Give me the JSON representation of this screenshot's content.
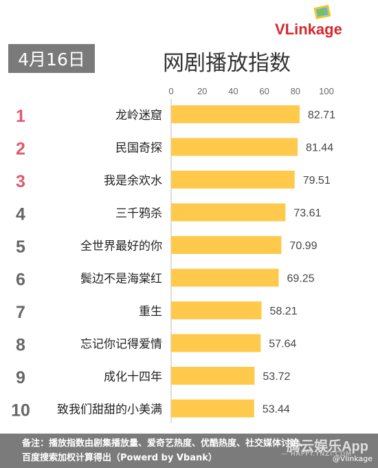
{
  "logo": {
    "text": "VLinkage"
  },
  "header": {
    "date": "4月16日",
    "title": "网剧播放指数"
  },
  "chart_data": {
    "type": "bar",
    "orientation": "horizontal",
    "title": "网剧播放指数",
    "xlim": [
      0,
      100
    ],
    "ticks": [
      0,
      20,
      40,
      60,
      80,
      100
    ],
    "ranks": [
      "1",
      "2",
      "3",
      "4",
      "5",
      "6",
      "7",
      "8",
      "9",
      "10"
    ],
    "categories": [
      "龙岭迷窟",
      "民国奇探",
      "我是余欢水",
      "三千鸦杀",
      "全世界最好的你",
      "鬓边不是海棠红",
      "重生",
      "忘记你记得爱情",
      "成化十四年",
      "致我们甜甜的小美满"
    ],
    "values": [
      82.71,
      81.44,
      79.51,
      73.61,
      70.99,
      69.25,
      58.21,
      57.64,
      53.72,
      53.44
    ],
    "value_labels": [
      "82.71",
      "81.44",
      "79.51",
      "73.61",
      "70.99",
      "69.25",
      "58.21",
      "57.64",
      "53.72",
      "53.44"
    ],
    "bar_color": "#ffc94b",
    "top_rank_color": "#e0576a",
    "rank_color": "#666666"
  },
  "footer": {
    "line1": "备注：播放指数由剧集播放量、爱奇艺热度、优酷热度、社交媒体讨论、",
    "line2": "百度搜索加权计算得出（Powerd by Vbank）"
  },
  "watermark": {
    "text": "腾云娱乐App",
    "sub": "— HAPPY.YNZI.COM",
    "weibo": "@Vlinkage"
  }
}
